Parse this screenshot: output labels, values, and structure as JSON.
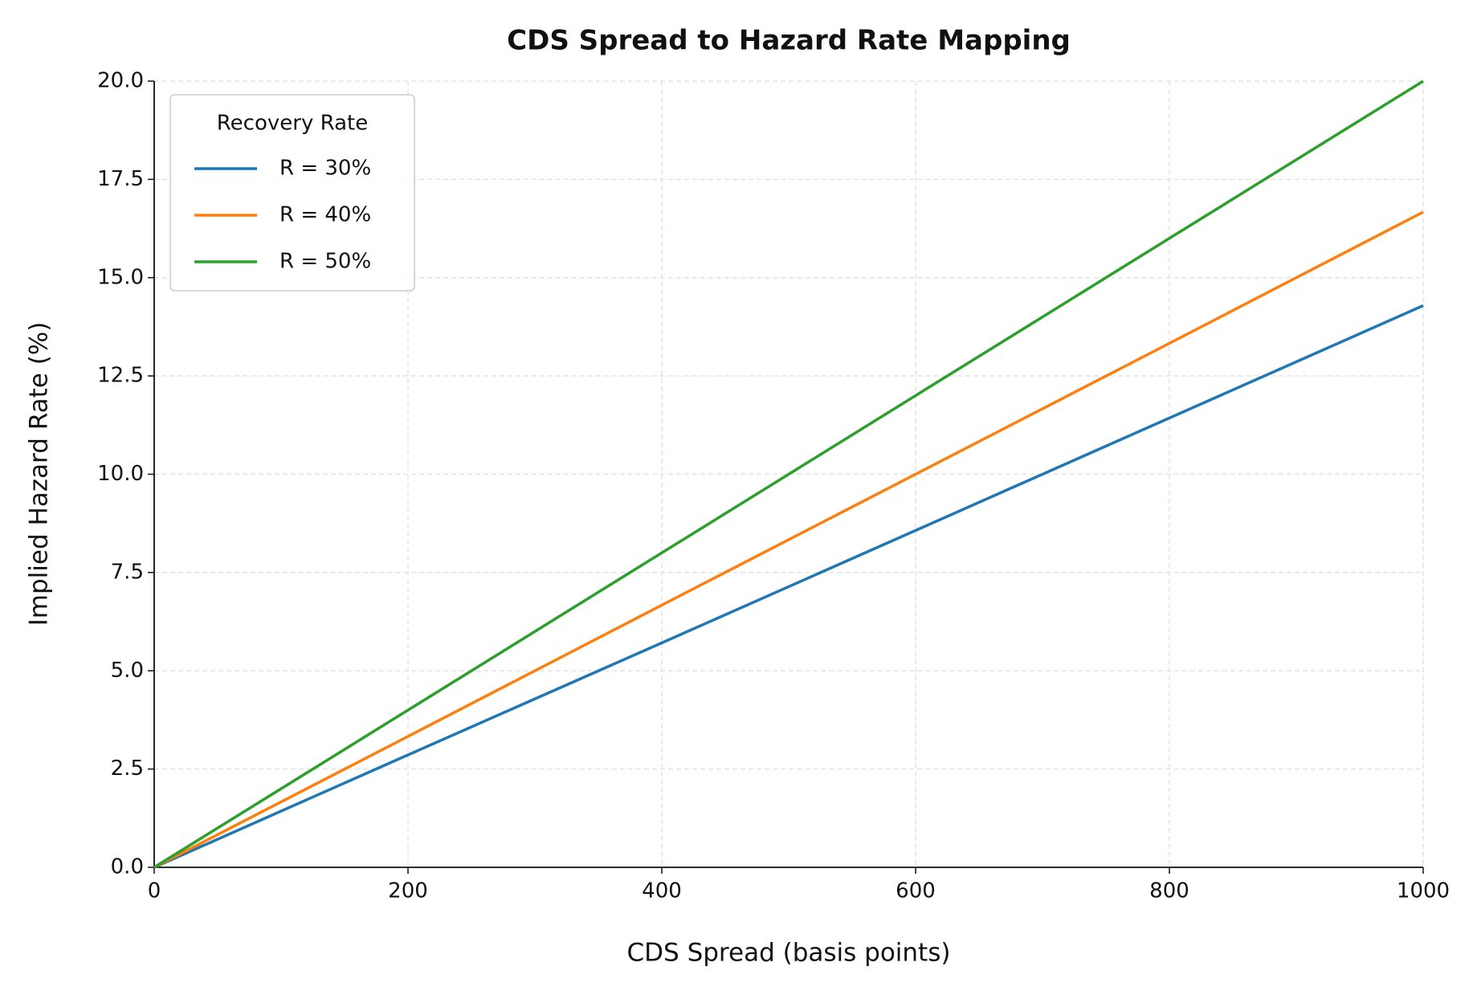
{
  "chart_data": {
    "type": "line",
    "title": "CDS Spread to Hazard Rate Mapping",
    "x_label": "CDS Spread (basis points)",
    "y_label": "Implied Hazard Rate (%)",
    "legend_title": "Recovery Rate",
    "legend_position": "upper-left",
    "grid": true,
    "x": [
      0,
      200,
      400,
      600,
      800,
      1000
    ],
    "series": [
      {
        "name": "R = 30%",
        "color": "#1f77b4",
        "values": [
          0,
          2.86,
          5.71,
          8.57,
          11.43,
          14.29
        ]
      },
      {
        "name": "R = 40%",
        "color": "#ff7f0e",
        "values": [
          0,
          3.33,
          6.67,
          10,
          13.33,
          16.67
        ]
      },
      {
        "name": "R = 50%",
        "color": "#2ca02c",
        "values": [
          0,
          4,
          8,
          12,
          16,
          20
        ]
      }
    ],
    "xlim": [
      0,
      1000
    ],
    "xticks": [
      0,
      200,
      400,
      600,
      800,
      1000
    ],
    "ylim": [
      0,
      20
    ],
    "yticks": [
      {
        "value": 0,
        "label": "0.0"
      },
      2.5,
      {
        "value": 5,
        "label": "5.0"
      },
      7.5,
      {
        "value": 10,
        "label": "10.0"
      },
      12.5,
      {
        "value": 15,
        "label": "15.0"
      },
      17.5,
      {
        "value": 20,
        "label": "20.0"
      }
    ]
  }
}
